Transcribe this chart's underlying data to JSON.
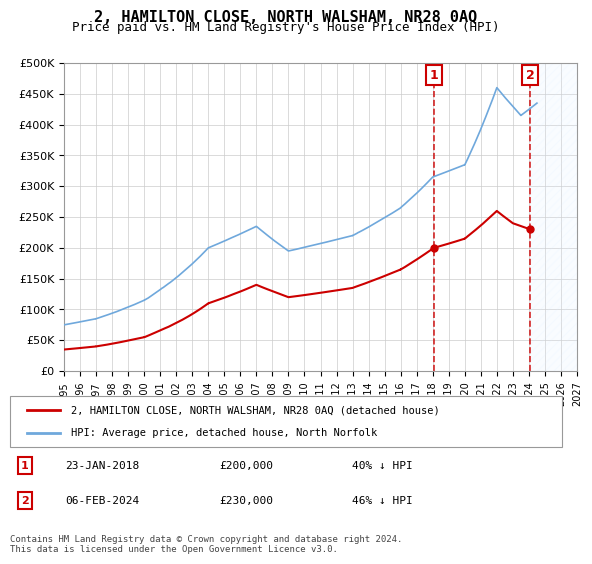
{
  "title": "2, HAMILTON CLOSE, NORTH WALSHAM, NR28 0AQ",
  "subtitle": "Price paid vs. HM Land Registry's House Price Index (HPI)",
  "legend_line1": "2, HAMILTON CLOSE, NORTH WALSHAM, NR28 0AQ (detached house)",
  "legend_line2": "HPI: Average price, detached house, North Norfolk",
  "annotation1_label": "1",
  "annotation1_date": "23-JAN-2018",
  "annotation1_price": "£200,000",
  "annotation1_hpi": "40% ↓ HPI",
  "annotation2_label": "2",
  "annotation2_date": "06-FEB-2024",
  "annotation2_price": "£230,000",
  "annotation2_hpi": "46% ↓ HPI",
  "footer": "Contains HM Land Registry data © Crown copyright and database right 2024.\nThis data is licensed under the Open Government Licence v3.0.",
  "hpi_color": "#6fa8dc",
  "sale_color": "#cc0000",
  "vline_color": "#cc0000",
  "annotation_box_color": "#cc0000",
  "background_hatch_color": "#ddeeff",
  "ylim": [
    0,
    500000
  ],
  "yticks": [
    0,
    50000,
    100000,
    150000,
    200000,
    250000,
    300000,
    350000,
    400000,
    450000,
    500000
  ],
  "sale1_x": 2018.07,
  "sale1_y": 200000,
  "sale2_x": 2024.09,
  "sale2_y": 230000,
  "xmin": 1995,
  "xmax": 2027
}
